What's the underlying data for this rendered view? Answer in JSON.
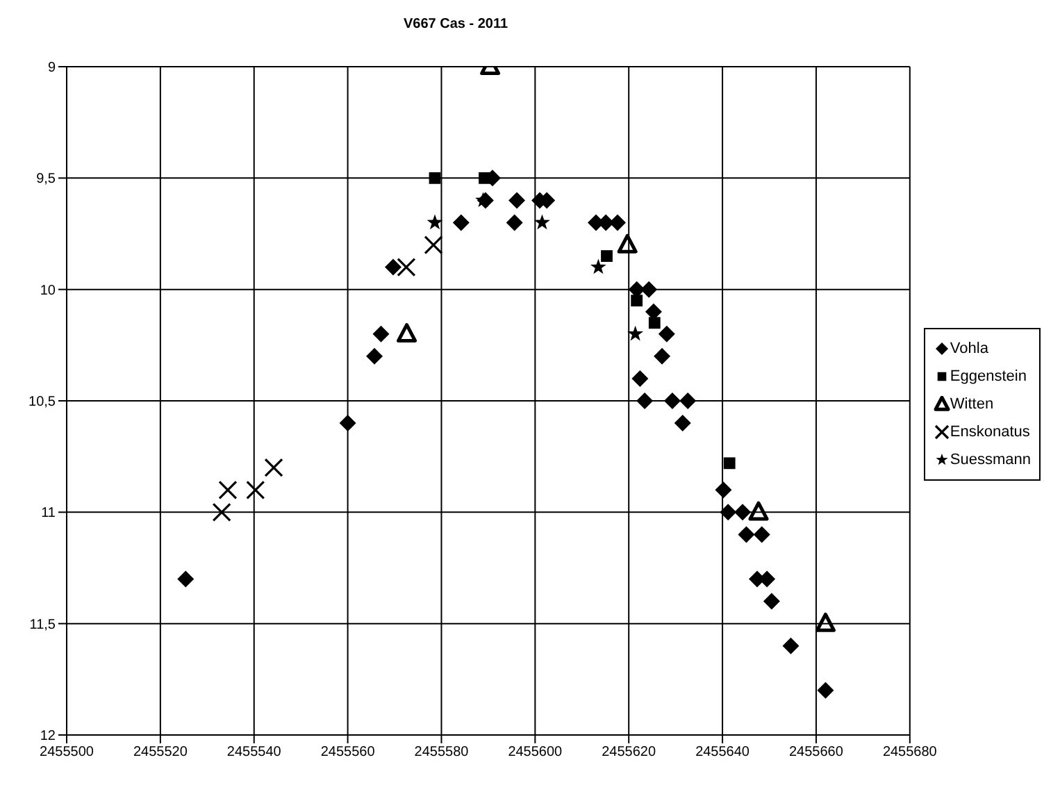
{
  "chart_data": {
    "type": "scatter",
    "title": "V667 Cas - 2011",
    "xlim": [
      2455500,
      2455680
    ],
    "xticks": [
      2455500,
      2455520,
      2455540,
      2455560,
      2455580,
      2455600,
      2455620,
      2455640,
      2455660,
      2455680
    ],
    "ylim": [
      12,
      9
    ],
    "yticks": [
      9,
      {
        "value": 9.5,
        "label": "9,5"
      },
      10,
      {
        "value": 10.5,
        "label": "10,5"
      },
      11,
      {
        "value": 11.5,
        "label": "11,5"
      },
      12
    ],
    "grid": true,
    "legend": "right",
    "series": [
      {
        "name": "Vohla",
        "color": "#000000",
        "marker": "diamond",
        "x": [
          2455525.4,
          2455560,
          2455567.1,
          2455565.7,
          2455569.7,
          2455584.2,
          2455590.9,
          2455589.4,
          2455596.1,
          2455595.6,
          2455601,
          2455602.5,
          2455613,
          2455615.1,
          2455617.6,
          2455621.7,
          2455624.3,
          2455625.3,
          2455628.1,
          2455627.1,
          2455622.4,
          2455623.4,
          2455629.3,
          2455632.6,
          2455631.5,
          2455640.2,
          2455641.2,
          2455644.3,
          2455645.1,
          2455648.4,
          2455647.4,
          2455649.5,
          2455650.5,
          2455654.6,
          2455662
        ],
        "values": [
          11.3,
          10.6,
          10.2,
          10.3,
          9.9,
          9.7,
          9.5,
          9.6,
          9.6,
          9.7,
          9.6,
          9.6,
          9.7,
          9.7,
          9.7,
          10,
          10,
          10.1,
          10.2,
          10.3,
          10.4,
          10.5,
          10.5,
          10.5,
          10.6,
          10.9,
          11,
          11,
          11.1,
          11.1,
          11.3,
          11.3,
          11.4,
          11.6,
          11.8
        ]
      },
      {
        "name": "Eggenstein",
        "color": "#000000",
        "marker": "square",
        "x": [
          2455578.6,
          2455589.2,
          2455615.3,
          2455621.7,
          2455625.5,
          2455641.5
        ],
        "values": [
          9.5,
          9.5,
          9.85,
          10.05,
          10.15,
          10.78
        ]
      },
      {
        "name": "Witten",
        "color": "#000000",
        "marker": "triangle",
        "x": [
          2455572.6,
          2455590.4,
          2455619.7,
          2455647.7,
          2455662
        ],
        "values": [
          10.2,
          9,
          9.8,
          11,
          11.5
        ]
      },
      {
        "name": "Enskonatus",
        "color": "#000000",
        "marker": "cross",
        "x": [
          2455533.1,
          2455534.4,
          2455540.3,
          2455544.2,
          2455572.5,
          2455578.3
        ],
        "values": [
          11,
          10.9,
          10.9,
          10.8,
          9.9,
          9.8
        ]
      },
      {
        "name": "Suessmann",
        "color": "#000000",
        "marker": "star",
        "x": [
          2455578.6,
          2455588.9,
          2455601.5,
          2455613.5,
          2455621.4
        ],
        "values": [
          9.7,
          9.6,
          9.7,
          9.9,
          10.2
        ]
      }
    ]
  }
}
